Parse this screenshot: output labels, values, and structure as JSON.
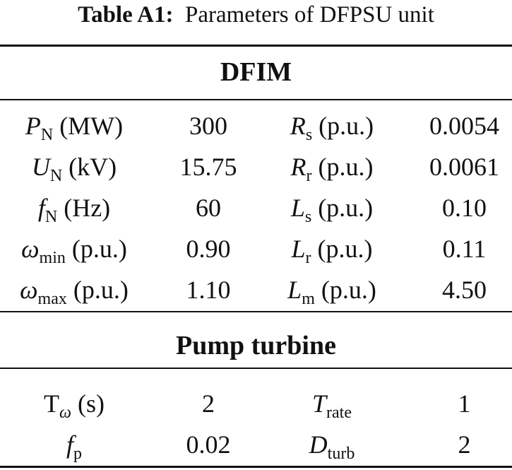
{
  "caption": {
    "label": "Table A1:",
    "text": "Parameters of DFPSU unit"
  },
  "sections": {
    "dfim": {
      "title": "DFIM",
      "rows": [
        {
          "p1": {
            "sym": "P",
            "sub": "N",
            "unit": " (MW)"
          },
          "v1": "300",
          "p2": {
            "sym": "R",
            "sub": "s",
            "unit": " (p.u.)"
          },
          "v2": "0.0054"
        },
        {
          "p1": {
            "sym": "U",
            "sub": "N",
            "unit": " (kV)"
          },
          "v1": "15.75",
          "p2": {
            "sym": "R",
            "sub": "r",
            "unit": " (p.u.)"
          },
          "v2": "0.0061"
        },
        {
          "p1": {
            "sym": "f",
            "sub": "N",
            "unit": " (Hz)"
          },
          "v1": "60",
          "p2": {
            "sym": "L",
            "sub": "s",
            "unit": " (p.u.)"
          },
          "v2": "0.10"
        },
        {
          "p1": {
            "sym": "ω",
            "sub": "min",
            "unit": " (p.u.)"
          },
          "v1": "0.90",
          "p2": {
            "sym": "L",
            "sub": "r",
            "unit": " (p.u.)"
          },
          "v2": "0.11"
        },
        {
          "p1": {
            "sym": "ω",
            "sub": "max",
            "unit": " (p.u.)"
          },
          "v1": "1.10",
          "p2": {
            "sym": "L",
            "sub": "m",
            "unit": " (p.u.)"
          },
          "v2": "4.50"
        }
      ]
    },
    "pump": {
      "title": "Pump turbine",
      "rows": [
        {
          "p1": {
            "sym": "T",
            "sub": "ω",
            "unit": " (s)"
          },
          "v1": "2",
          "p2": {
            "sym": "T",
            "sub": "rate",
            "unit": ""
          },
          "v2": "1"
        },
        {
          "p1": {
            "sym": "f",
            "sub": "p",
            "unit": ""
          },
          "v1": "0.02",
          "p2": {
            "sym": "D",
            "sub": "turb",
            "unit": ""
          },
          "v2": "2"
        }
      ]
    }
  }
}
